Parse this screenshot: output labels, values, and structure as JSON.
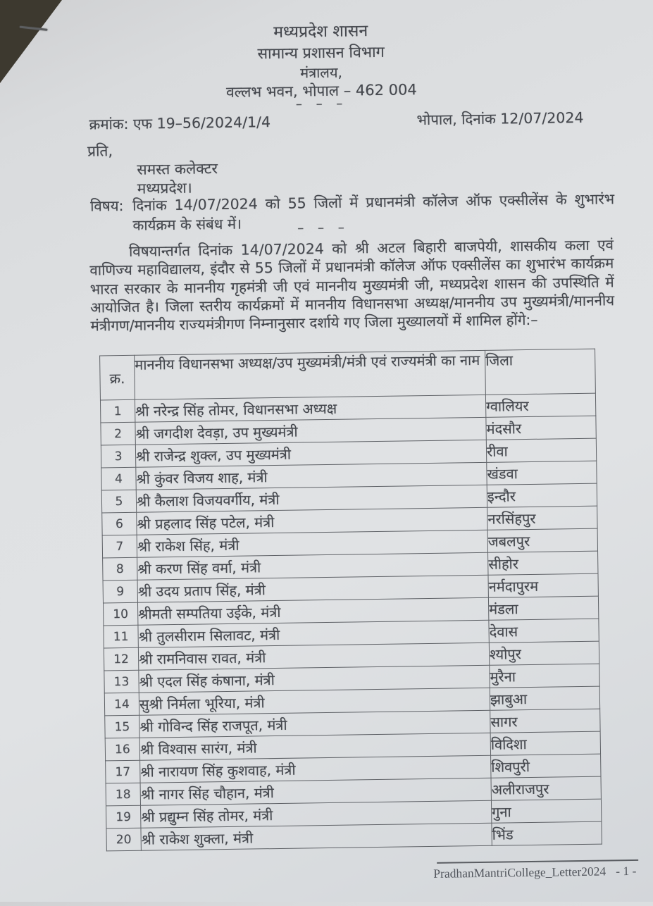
{
  "colors": {
    "paper": "#dfe1e3",
    "ink": "#45484e",
    "table_border": "#5f6267",
    "photo_edge": "#3d392f",
    "footer_ink": "#52565d"
  },
  "letterhead": {
    "line1": "मध्यप्रदेश शासन",
    "line2": "सामान्य प्रशासन विभाग",
    "line3": "मंत्रालय,",
    "line4": "वल्लभ भवन, भोपाल – 462 004",
    "separator": "– – –"
  },
  "reference": {
    "number": "क्रमांक: एफ 19–56/2024/1/4",
    "place_date": "भोपाल, दिनांक 12/07/2024"
  },
  "addressee": {
    "salutation": "प्रति,",
    "name": "समस्त कलेक्टर",
    "region": "मध्यप्रदेश।"
  },
  "subject": {
    "label": "विषय:",
    "text": "दिनांक 14/07/2024 को 55 जिलों में प्रधानमंत्री कॉलेज ऑफ एक्सीलेंस के शुभारंभ कार्यक्रम के संबंध में।",
    "separator": "– – –"
  },
  "body": {
    "text": "विषयान्तर्गत दिनांक 14/07/2024 को श्री अटल बिहारी बाजपेयी, शासकीय कला एवं वाणिज्य महाविद्यालय, इंदौर से 55 जिलों में प्रधानमंत्री कॉलेज ऑफ एक्सीलेंस का शुभारंभ कार्यक्रम भारत सरकार के माननीय गृहमंत्री जी एवं माननीय मुख्यमंत्री जी, मध्यप्रदेश शासन की उपस्थिति में आयोजित है। जिला स्तरीय कार्यक्रमों में माननीय विधानसभा अध्यक्ष/माननीय उप मुख्यमंत्री/माननीय मंत्रीगण/माननीय राज्यमंत्रीगण निम्नानुसार दर्शाये गए जिला मुख्यालयों में शामिल होंगे:–"
  },
  "table": {
    "headers": {
      "sno": "क्र.",
      "name": "माननीय विधानसभा अध्यक्ष/उप मुख्यमंत्री/मंत्री एवं राज्यमंत्री का नाम",
      "district": "जिला"
    },
    "rows": [
      {
        "sno": "1",
        "name": "श्री नरेन्द्र सिंह तोमर, विधानसभा अध्यक्ष",
        "district": "ग्वालियर"
      },
      {
        "sno": "2",
        "name": "श्री जगदीश देवड़ा, उप मुख्यमंत्री",
        "district": "मंदसौर"
      },
      {
        "sno": "3",
        "name": "श्री राजेन्द्र शुक्ल, उप मुख्यमंत्री",
        "district": "रीवा"
      },
      {
        "sno": "4",
        "name": "श्री कुंवर विजय शाह, मंत्री",
        "district": "खंडवा"
      },
      {
        "sno": "5",
        "name": "श्री कैलाश विजयवर्गीय, मंत्री",
        "district": "इन्दौर"
      },
      {
        "sno": "6",
        "name": "श्री प्रहलाद सिंह पटेल, मंत्री",
        "district": "नरसिंहपुर"
      },
      {
        "sno": "7",
        "name": "श्री राकेश सिंह, मंत्री",
        "district": "जबलपुर"
      },
      {
        "sno": "8",
        "name": "श्री करण सिंह वर्मा, मंत्री",
        "district": "सीहोर"
      },
      {
        "sno": "9",
        "name": "श्री उदय प्रताप सिंह, मंत्री",
        "district": "नर्मदापुरम"
      },
      {
        "sno": "10",
        "name": "श्रीमती सम्पतिया उईके, मंत्री",
        "district": "मंडला"
      },
      {
        "sno": "11",
        "name": "श्री तुलसीराम सिलावट, मंत्री",
        "district": "देवास"
      },
      {
        "sno": "12",
        "name": "श्री रामनिवास रावत, मंत्री",
        "district": "श्योपुर"
      },
      {
        "sno": "13",
        "name": "श्री एदल सिंह कंषाना, मंत्री",
        "district": "मुरैना"
      },
      {
        "sno": "14",
        "name": "सुश्री निर्मला भूरिया, मंत्री",
        "district": "झाबुआ"
      },
      {
        "sno": "15",
        "name": "श्री गोविन्द सिंह राजपूत, मंत्री",
        "district": "सागर"
      },
      {
        "sno": "16",
        "name": "श्री विश्वास सारंग, मंत्री",
        "district": "विदिशा"
      },
      {
        "sno": "17",
        "name": "श्री नारायण सिंह कुशवाह, मंत्री",
        "district": "शिवपुरी"
      },
      {
        "sno": "18",
        "name": "श्री नागर सिंह चौहान, मंत्री",
        "district": "अलीराजपुर"
      },
      {
        "sno": "19",
        "name": "श्री प्रद्युम्न सिंह तोमर, मंत्री",
        "district": "गुना"
      },
      {
        "sno": "20",
        "name": "श्री राकेश शुक्ला, मंत्री",
        "district": "भिंड"
      }
    ]
  },
  "footer": {
    "doc_name": "PradhanMantriCollege_Letter2024",
    "page_number": "- 1 -"
  }
}
